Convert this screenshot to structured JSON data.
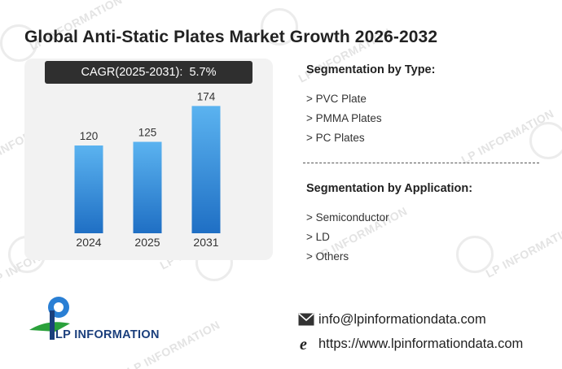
{
  "page": {
    "title": "Global Anti-Static Plates Market Growth 2026-2032"
  },
  "cagr": {
    "label": "CAGR(2025-2031)",
    "separator": ":  ",
    "value": "5.7%"
  },
  "chart_data": {
    "type": "bar",
    "categories": [
      "2024",
      "2025",
      "2031"
    ],
    "values": [
      120,
      125,
      174
    ],
    "data_labels": [
      "120",
      "125",
      "174"
    ],
    "title": "",
    "xlabel": "",
    "ylabel": "",
    "ylim": [
      0,
      200
    ],
    "grid": false,
    "bar_color_top": "#5bb3f0",
    "bar_color_bottom": "#1f6fc4"
  },
  "segments": {
    "type": {
      "heading": "Segmentation by Type:",
      "items": [
        "> PVC Plate",
        "> PMMA Plates",
        "> PC Plates"
      ]
    },
    "application": {
      "heading": "Segmentation by Application:",
      "items": [
        "> Semiconductor",
        "> LD",
        "> Others"
      ]
    }
  },
  "brand": {
    "logo_text": "LP INFORMATION",
    "watermark_text": "LP INFORMATION",
    "colors": {
      "blue": "#1b3f7c",
      "green": "#2aa13b",
      "accent_blue": "#2a7fd4"
    }
  },
  "contact": {
    "email": "info@lpinformationdata.com",
    "email_icon": "envelope-icon",
    "website": "https://www.lpinformationdata.com",
    "website_icon": "internet-explorer-icon"
  }
}
